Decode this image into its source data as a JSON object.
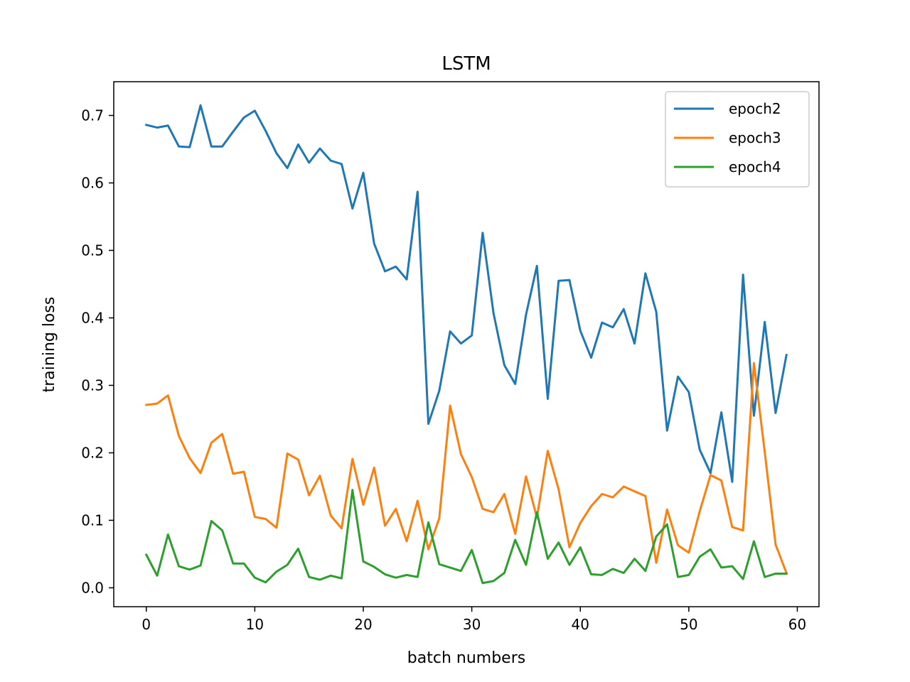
{
  "chart_data": {
    "type": "line",
    "title": "LSTM",
    "xlabel": "batch numbers",
    "ylabel": "training loss",
    "xlim": [
      -3,
      62
    ],
    "ylim": [
      -0.028,
      0.75
    ],
    "xticks": [
      0,
      10,
      20,
      30,
      40,
      50,
      60
    ],
    "xtick_labels": [
      "0",
      "10",
      "20",
      "30",
      "40",
      "50",
      "60"
    ],
    "yticks": [
      0.0,
      0.1,
      0.2,
      0.3,
      0.4,
      0.5,
      0.6,
      0.7
    ],
    "ytick_labels": [
      "0.0",
      "0.1",
      "0.2",
      "0.3",
      "0.4",
      "0.5",
      "0.6",
      "0.7"
    ],
    "grid": false,
    "legend_position": "top-right",
    "x": [
      0,
      1,
      2,
      3,
      4,
      5,
      6,
      7,
      8,
      9,
      10,
      11,
      12,
      13,
      14,
      15,
      16,
      17,
      18,
      19,
      20,
      21,
      22,
      23,
      24,
      25,
      26,
      27,
      28,
      29,
      30,
      31,
      32,
      33,
      34,
      35,
      36,
      37,
      38,
      39,
      40,
      41,
      42,
      43,
      44,
      45,
      46,
      47,
      48,
      49,
      50,
      51,
      52,
      53,
      54,
      55,
      56,
      57,
      58,
      59
    ],
    "series": [
      {
        "name": "epoch2",
        "color": "#1f77b4",
        "values": [
          0.686,
          0.682,
          0.685,
          0.654,
          0.653,
          0.715,
          0.654,
          0.654,
          0.676,
          0.697,
          0.707,
          0.677,
          0.644,
          0.622,
          0.657,
          0.63,
          0.651,
          0.633,
          0.628,
          0.562,
          0.615,
          0.51,
          0.469,
          0.476,
          0.457,
          0.587,
          0.243,
          0.292,
          0.38,
          0.362,
          0.374,
          0.526,
          0.407,
          0.33,
          0.302,
          0.405,
          0.477,
          0.28,
          0.455,
          0.456,
          0.381,
          0.341,
          0.393,
          0.386,
          0.413,
          0.362,
          0.466,
          0.409,
          0.233,
          0.313,
          0.29,
          0.205,
          0.17,
          0.26,
          0.157,
          0.464,
          0.255,
          0.394,
          0.259,
          0.345
        ]
      },
      {
        "name": "epoch3",
        "color": "#ff7f0e",
        "values": [
          0.271,
          0.273,
          0.285,
          0.225,
          0.192,
          0.17,
          0.215,
          0.228,
          0.169,
          0.172,
          0.105,
          0.102,
          0.089,
          0.199,
          0.19,
          0.137,
          0.166,
          0.107,
          0.088,
          0.191,
          0.123,
          0.178,
          0.092,
          0.117,
          0.069,
          0.129,
          0.057,
          0.103,
          0.27,
          0.198,
          0.164,
          0.117,
          0.112,
          0.139,
          0.08,
          0.165,
          0.104,
          0.203,
          0.146,
          0.06,
          0.096,
          0.121,
          0.139,
          0.134,
          0.15,
          0.143,
          0.136,
          0.037,
          0.116,
          0.063,
          0.052,
          0.113,
          0.167,
          0.159,
          0.09,
          0.085,
          0.333,
          0.201,
          0.064,
          0.022
        ]
      },
      {
        "name": "epoch4",
        "color": "#2ca02c",
        "values": [
          0.049,
          0.018,
          0.079,
          0.032,
          0.027,
          0.033,
          0.099,
          0.085,
          0.036,
          0.036,
          0.015,
          0.008,
          0.024,
          0.034,
          0.058,
          0.016,
          0.012,
          0.018,
          0.014,
          0.145,
          0.039,
          0.031,
          0.02,
          0.015,
          0.019,
          0.016,
          0.097,
          0.035,
          0.03,
          0.025,
          0.056,
          0.007,
          0.01,
          0.022,
          0.071,
          0.034,
          0.112,
          0.043,
          0.067,
          0.034,
          0.06,
          0.02,
          0.019,
          0.028,
          0.022,
          0.043,
          0.025,
          0.076,
          0.094,
          0.016,
          0.019,
          0.046,
          0.057,
          0.03,
          0.032,
          0.013,
          0.069,
          0.016,
          0.021,
          0.021
        ]
      }
    ]
  }
}
